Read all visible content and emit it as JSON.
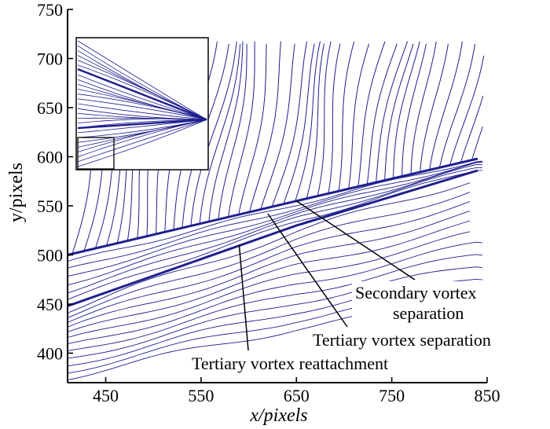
{
  "chart_data": {
    "type": "streamline",
    "xlabel": "x/pixels",
    "ylabel": "y/pixels",
    "xlim": [
      410,
      850
    ],
    "ylim": [
      370,
      750
    ],
    "x_ticks": [
      450,
      550,
      650,
      750,
      850
    ],
    "y_ticks": [
      400,
      450,
      500,
      550,
      600,
      650,
      700,
      750
    ],
    "line_color": "#1f1f8f",
    "separation_lines": [
      {
        "name": "upper",
        "points": [
          [
            410,
            500
          ],
          [
            650,
            555
          ],
          [
            840,
            598
          ]
        ]
      },
      {
        "name": "lower",
        "points": [
          [
            410,
            448
          ],
          [
            650,
            530
          ],
          [
            840,
            586
          ]
        ]
      }
    ],
    "annotations": [
      {
        "text": [
          "Secondary vortex",
          "separation"
        ],
        "points_to": [
          650,
          555
        ]
      },
      {
        "text": [
          "Tertiary vortex separation"
        ],
        "points_to": [
          620,
          542
        ]
      },
      {
        "text": [
          "Tertiary vortex reattachment"
        ],
        "points_to": [
          590,
          510
        ]
      }
    ],
    "inset": {
      "present": true,
      "shows": "full delta wing surface streamlines, box marks zoomed region"
    }
  }
}
